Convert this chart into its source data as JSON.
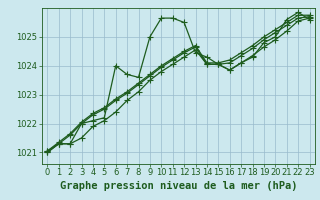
{
  "title": "Graphe pression niveau de la mer (hPa)",
  "background_color": "#cce8ee",
  "grid_color": "#99bbcc",
  "line_color": "#1e5c1e",
  "xlim": [
    -0.5,
    23.5
  ],
  "ylim": [
    1020.6,
    1026.0
  ],
  "yticks": [
    1021,
    1022,
    1023,
    1024,
    1025
  ],
  "xticks": [
    0,
    1,
    2,
    3,
    4,
    5,
    6,
    7,
    8,
    9,
    10,
    11,
    12,
    13,
    14,
    15,
    16,
    17,
    18,
    19,
    20,
    21,
    22,
    23
  ],
  "series": [
    [
      1021.0,
      1021.3,
      1021.3,
      1022.0,
      1022.1,
      1022.2,
      1024.0,
      1023.7,
      1023.6,
      1025.0,
      1025.65,
      1025.65,
      1025.5,
      1024.45,
      1024.3,
      1024.05,
      1023.85,
      1024.1,
      1024.3,
      1024.8,
      1025.0,
      1025.6,
      1025.85,
      1025.6
    ],
    [
      1021.0,
      1021.3,
      1021.3,
      1021.5,
      1021.9,
      1022.1,
      1022.4,
      1022.8,
      1023.1,
      1023.5,
      1023.8,
      1024.05,
      1024.3,
      1024.55,
      1024.05,
      1024.05,
      1023.85,
      1024.1,
      1024.35,
      1024.65,
      1024.9,
      1025.2,
      1025.55,
      1025.65
    ],
    [
      1021.05,
      1021.3,
      1021.6,
      1022.0,
      1022.3,
      1022.5,
      1022.8,
      1023.05,
      1023.35,
      1023.65,
      1023.95,
      1024.2,
      1024.45,
      1024.65,
      1024.05,
      1024.05,
      1024.1,
      1024.35,
      1024.6,
      1024.9,
      1025.15,
      1025.4,
      1025.65,
      1025.7
    ],
    [
      1021.05,
      1021.35,
      1021.65,
      1022.05,
      1022.35,
      1022.55,
      1022.85,
      1023.1,
      1023.4,
      1023.7,
      1024.0,
      1024.25,
      1024.5,
      1024.7,
      1024.1,
      1024.1,
      1024.2,
      1024.45,
      1024.7,
      1025.0,
      1025.25,
      1025.5,
      1025.75,
      1025.75
    ]
  ],
  "marker": "+",
  "markersize": 4,
  "linewidth": 0.9,
  "tick_fontsize": 6,
  "xlabel_fontsize": 7.5
}
